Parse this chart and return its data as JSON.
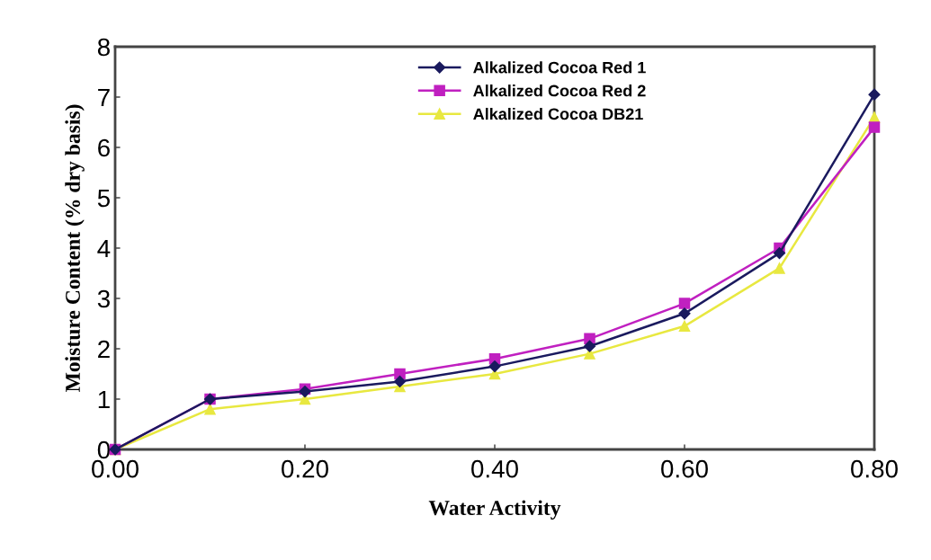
{
  "chart_data": {
    "type": "line",
    "xlabel": "Water Activity",
    "ylabel": "Moisture Content (% dry basis)",
    "x": [
      0,
      0.1,
      0.2,
      0.3,
      0.4,
      0.5,
      0.6,
      0.7,
      0.8
    ],
    "series": [
      {
        "name": "Alkalized Cocoa Red 1",
        "color": "#1a1a5e",
        "marker": "diamond",
        "values": [
          0,
          1.0,
          1.15,
          1.35,
          1.65,
          2.05,
          2.7,
          3.9,
          7.05
        ]
      },
      {
        "name": "Alkalized Cocoa Red 2",
        "color": "#c020c0",
        "marker": "square",
        "values": [
          0,
          1.0,
          1.2,
          1.5,
          1.8,
          2.2,
          2.9,
          4.0,
          6.4
        ]
      },
      {
        "name": "Alkalized Cocoa DB21",
        "color": "#e8e840",
        "marker": "triangle",
        "values": [
          0,
          0.8,
          1.0,
          1.25,
          1.5,
          1.9,
          2.45,
          3.6,
          6.6
        ]
      }
    ],
    "xlim": [
      0,
      0.8
    ],
    "xticks": [
      {
        "value": 0,
        "label": "0.00"
      },
      {
        "value": 0.2,
        "label": "0.20"
      },
      {
        "value": 0.4,
        "label": "0.40"
      },
      {
        "value": 0.6,
        "label": "0.60"
      },
      {
        "value": 0.8,
        "label": "0.80"
      }
    ],
    "ylim": [
      0,
      8
    ],
    "yticks": [
      0,
      1,
      2,
      3,
      4,
      5,
      6,
      7,
      8
    ],
    "grid": false,
    "legend": "top",
    "line_style": "solid"
  }
}
